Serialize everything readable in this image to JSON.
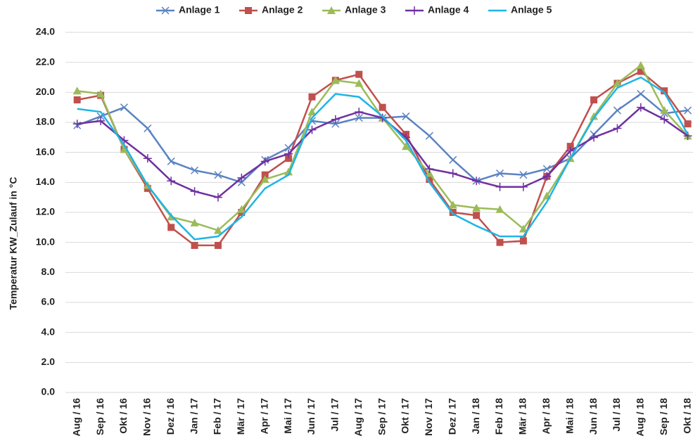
{
  "chart_data": {
    "type": "line",
    "y_label": "Temperatur KW_Zulauf in °C",
    "categories": [
      "Aug / 16",
      "Sep / 16",
      "Okt / 16",
      "Nov / 16",
      "Dez / 16",
      "Jan / 17",
      "Feb / 17",
      "Mär / 17",
      "Apr / 17",
      "Mai / 17",
      "Jun / 17",
      "Jul / 17",
      "Aug / 17",
      "Sep / 17",
      "Okt / 17",
      "Nov / 17",
      "Dez / 17",
      "Jan / 18",
      "Feb / 18",
      "Mär / 18",
      "Apr / 18",
      "Mai / 18",
      "Jun / 18",
      "Jul / 18",
      "Aug / 18",
      "Sep / 18",
      "Okt / 18"
    ],
    "series": [
      {
        "name": "Anlage 1",
        "color": "#5b83c2",
        "marker": "x",
        "values": [
          17.8,
          18.4,
          19.0,
          17.6,
          15.4,
          14.8,
          14.5,
          14.0,
          15.5,
          16.3,
          18.1,
          17.9,
          18.3,
          18.3,
          18.4,
          17.1,
          15.5,
          14.1,
          14.6,
          14.5,
          14.9,
          15.6,
          17.2,
          18.8,
          19.9,
          18.6,
          18.8
        ]
      },
      {
        "name": "Anlage 2",
        "color": "#c0504d",
        "marker": "square",
        "values": [
          19.5,
          19.8,
          16.2,
          13.6,
          11.0,
          9.8,
          9.8,
          12.0,
          14.5,
          15.6,
          19.7,
          20.8,
          21.2,
          19.0,
          17.2,
          14.2,
          12.0,
          11.8,
          10.0,
          10.1,
          14.4,
          16.4,
          19.5,
          20.6,
          21.4,
          20.1,
          17.9
        ]
      },
      {
        "name": "Anlage 3",
        "color": "#9bbb59",
        "marker": "triangle",
        "values": [
          20.1,
          19.9,
          16.2,
          13.8,
          11.7,
          11.3,
          10.8,
          12.2,
          14.2,
          14.7,
          18.7,
          20.8,
          20.6,
          18.3,
          16.4,
          14.6,
          12.5,
          12.3,
          12.2,
          10.9,
          13.1,
          15.6,
          18.4,
          20.6,
          21.8,
          18.8,
          17.1
        ]
      },
      {
        "name": "Anlage 4",
        "color": "#7030a0",
        "marker": "plus",
        "values": [
          17.9,
          18.1,
          16.8,
          15.6,
          14.1,
          13.4,
          13.0,
          14.3,
          15.4,
          15.9,
          17.5,
          18.2,
          18.7,
          18.3,
          17.0,
          14.9,
          14.6,
          14.1,
          13.7,
          13.7,
          14.4,
          16.1,
          17.0,
          17.6,
          19.0,
          18.2,
          17.1
        ]
      },
      {
        "name": "Anlage 5",
        "color": "#1fb4e6",
        "marker": "none",
        "values": [
          18.9,
          18.7,
          16.5,
          13.8,
          11.8,
          10.2,
          10.4,
          11.7,
          13.6,
          14.5,
          18.3,
          19.9,
          19.7,
          18.4,
          16.8,
          14.0,
          11.9,
          11.1,
          10.4,
          10.4,
          12.7,
          15.6,
          18.3,
          20.3,
          21.0,
          20.0,
          17.2
        ]
      }
    ],
    "ylim": [
      0,
      24
    ],
    "yticks": [
      {
        "value": 0,
        "label": "0.0"
      },
      {
        "value": 2,
        "label": "2.0"
      },
      {
        "value": 4,
        "label": "4.0"
      },
      {
        "value": 6,
        "label": "6.0"
      },
      {
        "value": 8,
        "label": "8.0"
      },
      {
        "value": 10,
        "label": "10.0"
      },
      {
        "value": 12,
        "label": "12.0"
      },
      {
        "value": 14,
        "label": "14.0"
      },
      {
        "value": 16,
        "label": "16.0"
      },
      {
        "value": 18,
        "label": "18.0"
      },
      {
        "value": 20,
        "label": "20.0"
      },
      {
        "value": 22,
        "label": "22.0"
      },
      {
        "value": 24,
        "label": "24.0"
      }
    ],
    "grid": true,
    "legend": "top"
  }
}
